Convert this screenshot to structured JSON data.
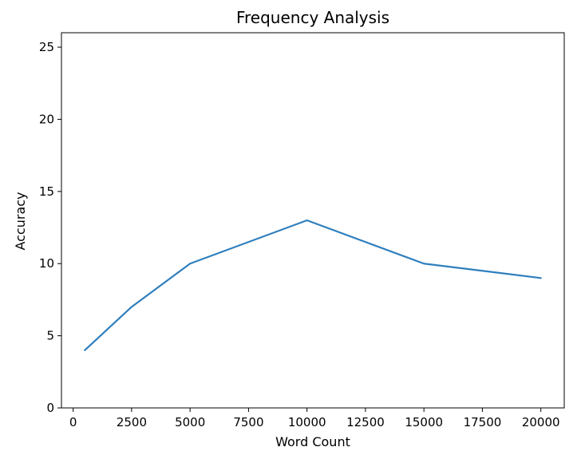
{
  "chart_data": {
    "type": "line",
    "title": "Frequency Analysis",
    "xlabel": "Word Count",
    "ylabel": "Accuracy",
    "x": [
      500,
      2500,
      5000,
      10000,
      15000,
      20000
    ],
    "series": [
      {
        "values": [
          4,
          7,
          10,
          13,
          10,
          9
        ],
        "color": "#2f7fbd"
      }
    ],
    "xlim": [
      -500,
      21000
    ],
    "ylim": [
      0,
      26
    ],
    "xticks": [
      0,
      2500,
      5000,
      7500,
      10000,
      12500,
      15000,
      17500,
      20000
    ],
    "yticks": [
      0,
      5,
      10,
      15,
      20,
      25
    ],
    "grid": false
  }
}
